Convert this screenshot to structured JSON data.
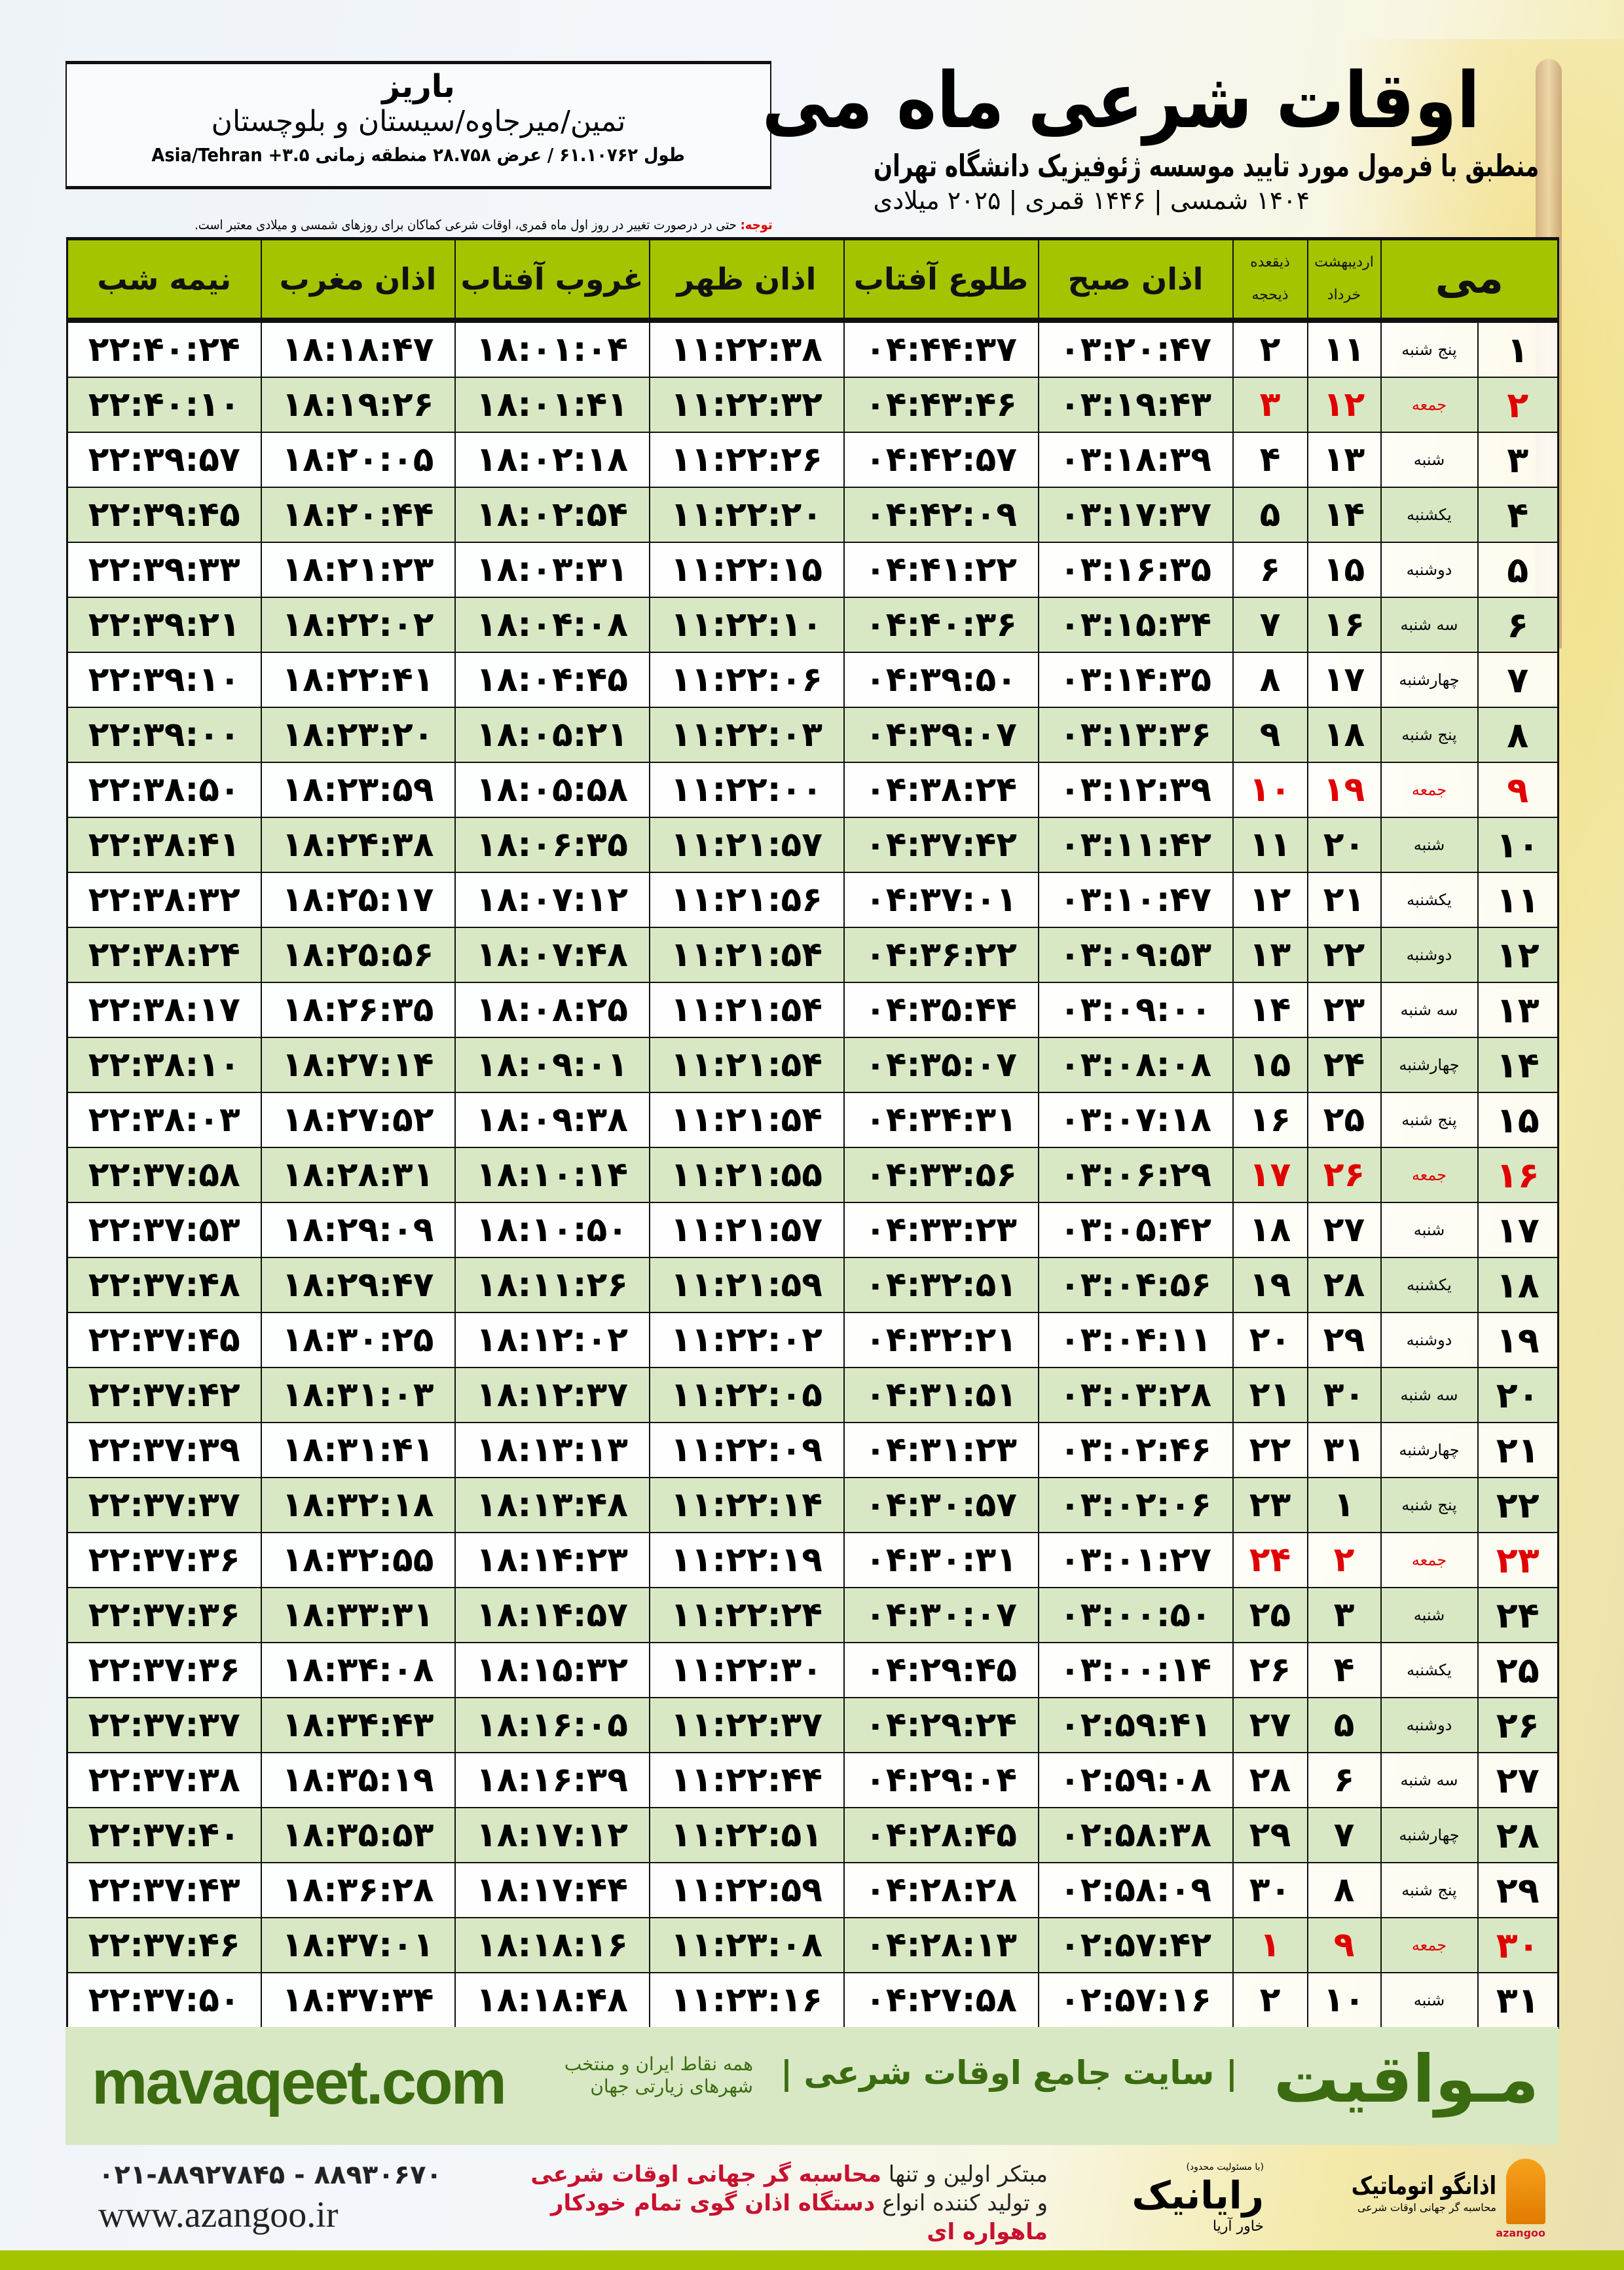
{
  "header": {
    "title": "اوقات شرعی ماه می",
    "subtitle": "منطبق با فرمول مورد تایید موسسه ژئوفیزیک دانشگاه تهران",
    "dates": "۱۴۰۴ شمسی | ۱۴۴۶ قمری | ۲۰۲۵ میلادی",
    "city": "باریز",
    "region": "تمین/میرجاوه/سیستان و بلوچستان",
    "coords": "طول ۶۱.۱۰۷۶۲ / عرض ۲۸.۷۵۸ منطقه زمانی Asia/Tehran +۳.۵",
    "note_label": "توجه:",
    "note": " حتی در درصورت تغییر در روز اول ماه قمری، اوقات شرعی کماکان برای روزهای شمسی و میلادی معتبر است."
  },
  "table": {
    "columns": {
      "month": "می",
      "shamsi_top": "اردیبهشت",
      "shamsi_bottom": "خرداد",
      "qamari_top": "ذیقعده",
      "qamari_bottom": "ذیحجه",
      "fajr": "اذان صبح",
      "sunrise": "طلوع آفتاب",
      "dhuhr": "اذان ظهر",
      "sunset": "غروب آفتاب",
      "maghrib": "اذان مغرب",
      "midnight": "نیمه شب"
    },
    "holiday_color": "#e00000",
    "rows": [
      {
        "day": "۱",
        "weekday": "پنج شنبه",
        "shamsi": "۱۱",
        "qamari": "۲",
        "fajr": "۰۳:۲۰:۴۷",
        "sunrise": "۰۴:۴۴:۳۷",
        "dhuhr": "۱۱:۲۲:۳۸",
        "sunset": "۱۸:۰۱:۰۴",
        "maghrib": "۱۸:۱۸:۴۷",
        "midnight": "۲۲:۴۰:۲۴",
        "holiday": false
      },
      {
        "day": "۲",
        "weekday": "جمعه",
        "shamsi": "۱۲",
        "qamari": "۳",
        "fajr": "۰۳:۱۹:۴۳",
        "sunrise": "۰۴:۴۳:۴۶",
        "dhuhr": "۱۱:۲۲:۳۲",
        "sunset": "۱۸:۰۱:۴۱",
        "maghrib": "۱۸:۱۹:۲۶",
        "midnight": "۲۲:۴۰:۱۰",
        "holiday": true
      },
      {
        "day": "۳",
        "weekday": "شنبه",
        "shamsi": "۱۳",
        "qamari": "۴",
        "fajr": "۰۳:۱۸:۳۹",
        "sunrise": "۰۴:۴۲:۵۷",
        "dhuhr": "۱۱:۲۲:۲۶",
        "sunset": "۱۸:۰۲:۱۸",
        "maghrib": "۱۸:۲۰:۰۵",
        "midnight": "۲۲:۳۹:۵۷",
        "holiday": false
      },
      {
        "day": "۴",
        "weekday": "یکشنبه",
        "shamsi": "۱۴",
        "qamari": "۵",
        "fajr": "۰۳:۱۷:۳۷",
        "sunrise": "۰۴:۴۲:۰۹",
        "dhuhr": "۱۱:۲۲:۲۰",
        "sunset": "۱۸:۰۲:۵۴",
        "maghrib": "۱۸:۲۰:۴۴",
        "midnight": "۲۲:۳۹:۴۵",
        "holiday": false
      },
      {
        "day": "۵",
        "weekday": "دوشنبه",
        "shamsi": "۱۵",
        "qamari": "۶",
        "fajr": "۰۳:۱۶:۳۵",
        "sunrise": "۰۴:۴۱:۲۲",
        "dhuhr": "۱۱:۲۲:۱۵",
        "sunset": "۱۸:۰۳:۳۱",
        "maghrib": "۱۸:۲۱:۲۳",
        "midnight": "۲۲:۳۹:۳۳",
        "holiday": false
      },
      {
        "day": "۶",
        "weekday": "سه شنبه",
        "shamsi": "۱۶",
        "qamari": "۷",
        "fajr": "۰۳:۱۵:۳۴",
        "sunrise": "۰۴:۴۰:۳۶",
        "dhuhr": "۱۱:۲۲:۱۰",
        "sunset": "۱۸:۰۴:۰۸",
        "maghrib": "۱۸:۲۲:۰۲",
        "midnight": "۲۲:۳۹:۲۱",
        "holiday": false
      },
      {
        "day": "۷",
        "weekday": "چهارشنبه",
        "shamsi": "۱۷",
        "qamari": "۸",
        "fajr": "۰۳:۱۴:۳۵",
        "sunrise": "۰۴:۳۹:۵۰",
        "dhuhr": "۱۱:۲۲:۰۶",
        "sunset": "۱۸:۰۴:۴۵",
        "maghrib": "۱۸:۲۲:۴۱",
        "midnight": "۲۲:۳۹:۱۰",
        "holiday": false
      },
      {
        "day": "۸",
        "weekday": "پنج شنبه",
        "shamsi": "۱۸",
        "qamari": "۹",
        "fajr": "۰۳:۱۳:۳۶",
        "sunrise": "۰۴:۳۹:۰۷",
        "dhuhr": "۱۱:۲۲:۰۳",
        "sunset": "۱۸:۰۵:۲۱",
        "maghrib": "۱۸:۲۳:۲۰",
        "midnight": "۲۲:۳۹:۰۰",
        "holiday": false
      },
      {
        "day": "۹",
        "weekday": "جمعه",
        "shamsi": "۱۹",
        "qamari": "۱۰",
        "fajr": "۰۳:۱۲:۳۹",
        "sunrise": "۰۴:۳۸:۲۴",
        "dhuhr": "۱۱:۲۲:۰۰",
        "sunset": "۱۸:۰۵:۵۸",
        "maghrib": "۱۸:۲۳:۵۹",
        "midnight": "۲۲:۳۸:۵۰",
        "holiday": true
      },
      {
        "day": "۱۰",
        "weekday": "شنبه",
        "shamsi": "۲۰",
        "qamari": "۱۱",
        "fajr": "۰۳:۱۱:۴۲",
        "sunrise": "۰۴:۳۷:۴۲",
        "dhuhr": "۱۱:۲۱:۵۷",
        "sunset": "۱۸:۰۶:۳۵",
        "maghrib": "۱۸:۲۴:۳۸",
        "midnight": "۲۲:۳۸:۴۱",
        "holiday": false
      },
      {
        "day": "۱۱",
        "weekday": "یکشنبه",
        "shamsi": "۲۱",
        "qamari": "۱۲",
        "fajr": "۰۳:۱۰:۴۷",
        "sunrise": "۰۴:۳۷:۰۱",
        "dhuhr": "۱۱:۲۱:۵۶",
        "sunset": "۱۸:۰۷:۱۲",
        "maghrib": "۱۸:۲۵:۱۷",
        "midnight": "۲۲:۳۸:۳۲",
        "holiday": false
      },
      {
        "day": "۱۲",
        "weekday": "دوشنبه",
        "shamsi": "۲۲",
        "qamari": "۱۳",
        "fajr": "۰۳:۰۹:۵۳",
        "sunrise": "۰۴:۳۶:۲۲",
        "dhuhr": "۱۱:۲۱:۵۴",
        "sunset": "۱۸:۰۷:۴۸",
        "maghrib": "۱۸:۲۵:۵۶",
        "midnight": "۲۲:۳۸:۲۴",
        "holiday": false
      },
      {
        "day": "۱۳",
        "weekday": "سه شنبه",
        "shamsi": "۲۳",
        "qamari": "۱۴",
        "fajr": "۰۳:۰۹:۰۰",
        "sunrise": "۰۴:۳۵:۴۴",
        "dhuhr": "۱۱:۲۱:۵۴",
        "sunset": "۱۸:۰۸:۲۵",
        "maghrib": "۱۸:۲۶:۳۵",
        "midnight": "۲۲:۳۸:۱۷",
        "holiday": false
      },
      {
        "day": "۱۴",
        "weekday": "چهارشنبه",
        "shamsi": "۲۴",
        "qamari": "۱۵",
        "fajr": "۰۳:۰۸:۰۸",
        "sunrise": "۰۴:۳۵:۰۷",
        "dhuhr": "۱۱:۲۱:۵۴",
        "sunset": "۱۸:۰۹:۰۱",
        "maghrib": "۱۸:۲۷:۱۴",
        "midnight": "۲۲:۳۸:۱۰",
        "holiday": false
      },
      {
        "day": "۱۵",
        "weekday": "پنج شنبه",
        "shamsi": "۲۵",
        "qamari": "۱۶",
        "fajr": "۰۳:۰۷:۱۸",
        "sunrise": "۰۴:۳۴:۳۱",
        "dhuhr": "۱۱:۲۱:۵۴",
        "sunset": "۱۸:۰۹:۳۸",
        "maghrib": "۱۸:۲۷:۵۲",
        "midnight": "۲۲:۳۸:۰۳",
        "holiday": false
      },
      {
        "day": "۱۶",
        "weekday": "جمعه",
        "shamsi": "۲۶",
        "qamari": "۱۷",
        "fajr": "۰۳:۰۶:۲۹",
        "sunrise": "۰۴:۳۳:۵۶",
        "dhuhr": "۱۱:۲۱:۵۵",
        "sunset": "۱۸:۱۰:۱۴",
        "maghrib": "۱۸:۲۸:۳۱",
        "midnight": "۲۲:۳۷:۵۸",
        "holiday": true
      },
      {
        "day": "۱۷",
        "weekday": "شنبه",
        "shamsi": "۲۷",
        "qamari": "۱۸",
        "fajr": "۰۳:۰۵:۴۲",
        "sunrise": "۰۴:۳۳:۲۳",
        "dhuhr": "۱۱:۲۱:۵۷",
        "sunset": "۱۸:۱۰:۵۰",
        "maghrib": "۱۸:۲۹:۰۹",
        "midnight": "۲۲:۳۷:۵۳",
        "holiday": false
      },
      {
        "day": "۱۸",
        "weekday": "یکشنبه",
        "shamsi": "۲۸",
        "qamari": "۱۹",
        "fajr": "۰۳:۰۴:۵۶",
        "sunrise": "۰۴:۳۲:۵۱",
        "dhuhr": "۱۱:۲۱:۵۹",
        "sunset": "۱۸:۱۱:۲۶",
        "maghrib": "۱۸:۲۹:۴۷",
        "midnight": "۲۲:۳۷:۴۸",
        "holiday": false
      },
      {
        "day": "۱۹",
        "weekday": "دوشنبه",
        "shamsi": "۲۹",
        "qamari": "۲۰",
        "fajr": "۰۳:۰۴:۱۱",
        "sunrise": "۰۴:۳۲:۲۱",
        "dhuhr": "۱۱:۲۲:۰۲",
        "sunset": "۱۸:۱۲:۰۲",
        "maghrib": "۱۸:۳۰:۲۵",
        "midnight": "۲۲:۳۷:۴۵",
        "holiday": false
      },
      {
        "day": "۲۰",
        "weekday": "سه شنبه",
        "shamsi": "۳۰",
        "qamari": "۲۱",
        "fajr": "۰۳:۰۳:۲۸",
        "sunrise": "۰۴:۳۱:۵۱",
        "dhuhr": "۱۱:۲۲:۰۵",
        "sunset": "۱۸:۱۲:۳۷",
        "maghrib": "۱۸:۳۱:۰۳",
        "midnight": "۲۲:۳۷:۴۲",
        "holiday": false
      },
      {
        "day": "۲۱",
        "weekday": "چهارشنبه",
        "shamsi": "۳۱",
        "qamari": "۲۲",
        "fajr": "۰۳:۰۲:۴۶",
        "sunrise": "۰۴:۳۱:۲۳",
        "dhuhr": "۱۱:۲۲:۰۹",
        "sunset": "۱۸:۱۳:۱۳",
        "maghrib": "۱۸:۳۱:۴۱",
        "midnight": "۲۲:۳۷:۳۹",
        "holiday": false
      },
      {
        "day": "۲۲",
        "weekday": "پنج شنبه",
        "shamsi": "۱",
        "qamari": "۲۳",
        "fajr": "۰۳:۰۲:۰۶",
        "sunrise": "۰۴:۳۰:۵۷",
        "dhuhr": "۱۱:۲۲:۱۴",
        "sunset": "۱۸:۱۳:۴۸",
        "maghrib": "۱۸:۳۲:۱۸",
        "midnight": "۲۲:۳۷:۳۷",
        "holiday": false
      },
      {
        "day": "۲۳",
        "weekday": "جمعه",
        "shamsi": "۲",
        "qamari": "۲۴",
        "fajr": "۰۳:۰۱:۲۷",
        "sunrise": "۰۴:۳۰:۳۱",
        "dhuhr": "۱۱:۲۲:۱۹",
        "sunset": "۱۸:۱۴:۲۳",
        "maghrib": "۱۸:۳۲:۵۵",
        "midnight": "۲۲:۳۷:۳۶",
        "holiday": true
      },
      {
        "day": "۲۴",
        "weekday": "شنبه",
        "shamsi": "۳",
        "qamari": "۲۵",
        "fajr": "۰۳:۰۰:۵۰",
        "sunrise": "۰۴:۳۰:۰۷",
        "dhuhr": "۱۱:۲۲:۲۴",
        "sunset": "۱۸:۱۴:۵۷",
        "maghrib": "۱۸:۳۳:۳۱",
        "midnight": "۲۲:۳۷:۳۶",
        "holiday": false
      },
      {
        "day": "۲۵",
        "weekday": "یکشنبه",
        "shamsi": "۴",
        "qamari": "۲۶",
        "fajr": "۰۳:۰۰:۱۴",
        "sunrise": "۰۴:۲۹:۴۵",
        "dhuhr": "۱۱:۲۲:۳۰",
        "sunset": "۱۸:۱۵:۳۲",
        "maghrib": "۱۸:۳۴:۰۸",
        "midnight": "۲۲:۳۷:۳۶",
        "holiday": false
      },
      {
        "day": "۲۶",
        "weekday": "دوشنبه",
        "shamsi": "۵",
        "qamari": "۲۷",
        "fajr": "۰۲:۵۹:۴۱",
        "sunrise": "۰۴:۲۹:۲۴",
        "dhuhr": "۱۱:۲۲:۳۷",
        "sunset": "۱۸:۱۶:۰۵",
        "maghrib": "۱۸:۳۴:۴۳",
        "midnight": "۲۲:۳۷:۳۷",
        "holiday": false
      },
      {
        "day": "۲۷",
        "weekday": "سه شنبه",
        "shamsi": "۶",
        "qamari": "۲۸",
        "fajr": "۰۲:۵۹:۰۸",
        "sunrise": "۰۴:۲۹:۰۴",
        "dhuhr": "۱۱:۲۲:۴۴",
        "sunset": "۱۸:۱۶:۳۹",
        "maghrib": "۱۸:۳۵:۱۹",
        "midnight": "۲۲:۳۷:۳۸",
        "holiday": false
      },
      {
        "day": "۲۸",
        "weekday": "چهارشنبه",
        "shamsi": "۷",
        "qamari": "۲۹",
        "fajr": "۰۲:۵۸:۳۸",
        "sunrise": "۰۴:۲۸:۴۵",
        "dhuhr": "۱۱:۲۲:۵۱",
        "sunset": "۱۸:۱۷:۱۲",
        "maghrib": "۱۸:۳۵:۵۳",
        "midnight": "۲۲:۳۷:۴۰",
        "holiday": false
      },
      {
        "day": "۲۹",
        "weekday": "پنج شنبه",
        "shamsi": "۸",
        "qamari": "۳۰",
        "fajr": "۰۲:۵۸:۰۹",
        "sunrise": "۰۴:۲۸:۲۸",
        "dhuhr": "۱۱:۲۲:۵۹",
        "sunset": "۱۸:۱۷:۴۴",
        "maghrib": "۱۸:۳۶:۲۸",
        "midnight": "۲۲:۳۷:۴۳",
        "holiday": false
      },
      {
        "day": "۳۰",
        "weekday": "جمعه",
        "shamsi": "۹",
        "qamari": "۱",
        "fajr": "۰۲:۵۷:۴۲",
        "sunrise": "۰۴:۲۸:۱۳",
        "dhuhr": "۱۱:۲۳:۰۸",
        "sunset": "۱۸:۱۸:۱۶",
        "maghrib": "۱۸:۳۷:۰۱",
        "midnight": "۲۲:۳۷:۴۶",
        "holiday": true
      },
      {
        "day": "۳۱",
        "weekday": "شنبه",
        "shamsi": "۱۰",
        "qamari": "۲",
        "fajr": "۰۲:۵۷:۱۶",
        "sunrise": "۰۴:۲۷:۵۸",
        "dhuhr": "۱۱:۲۳:۱۶",
        "sunset": "۱۸:۱۸:۴۸",
        "maghrib": "۱۸:۳۷:۳۴",
        "midnight": "۲۲:۳۷:۵۰",
        "holiday": false
      }
    ]
  },
  "footer": {
    "site": "mavaqeet.com",
    "brand": "مـواقیت",
    "brand_sub": "| سایت جامع اوقات شرعی |",
    "brand_sub2": "همه نقاط ایران و منتخب شهرهای زیارتی جهان",
    "phones": "۰۲۱-۸۸۹۲۷۸۴۵ - ۸۸۹۳۰۶۷۰",
    "web": "www.azangoo.ir",
    "promo_1a": "مبتکر اولین و تنها ",
    "promo_1b": "محاسبه گر جهانی اوقات شرعی",
    "promo_2a": "و تولید کننده انواع ",
    "promo_2b": "دستگاه اذان گوی تمام خودکار ماهواره ای",
    "logo_rayanik_tag": "(با مسئولیت محدود)",
    "logo_rayanik": "رایانیک",
    "logo_rayanik_sub": "خاور آریا",
    "logo_azangoo": "اذانگو اتوماتیک",
    "logo_azangoo_sub": "محاسبه گر جهانی اوقات شرعی",
    "logo_azangoo_en": "azangoo"
  },
  "colors": {
    "header_green": "#a4c400",
    "row_green": "#d9e8c4",
    "brand_green": "#3a6b10",
    "accent_red": "#c8102e"
  }
}
